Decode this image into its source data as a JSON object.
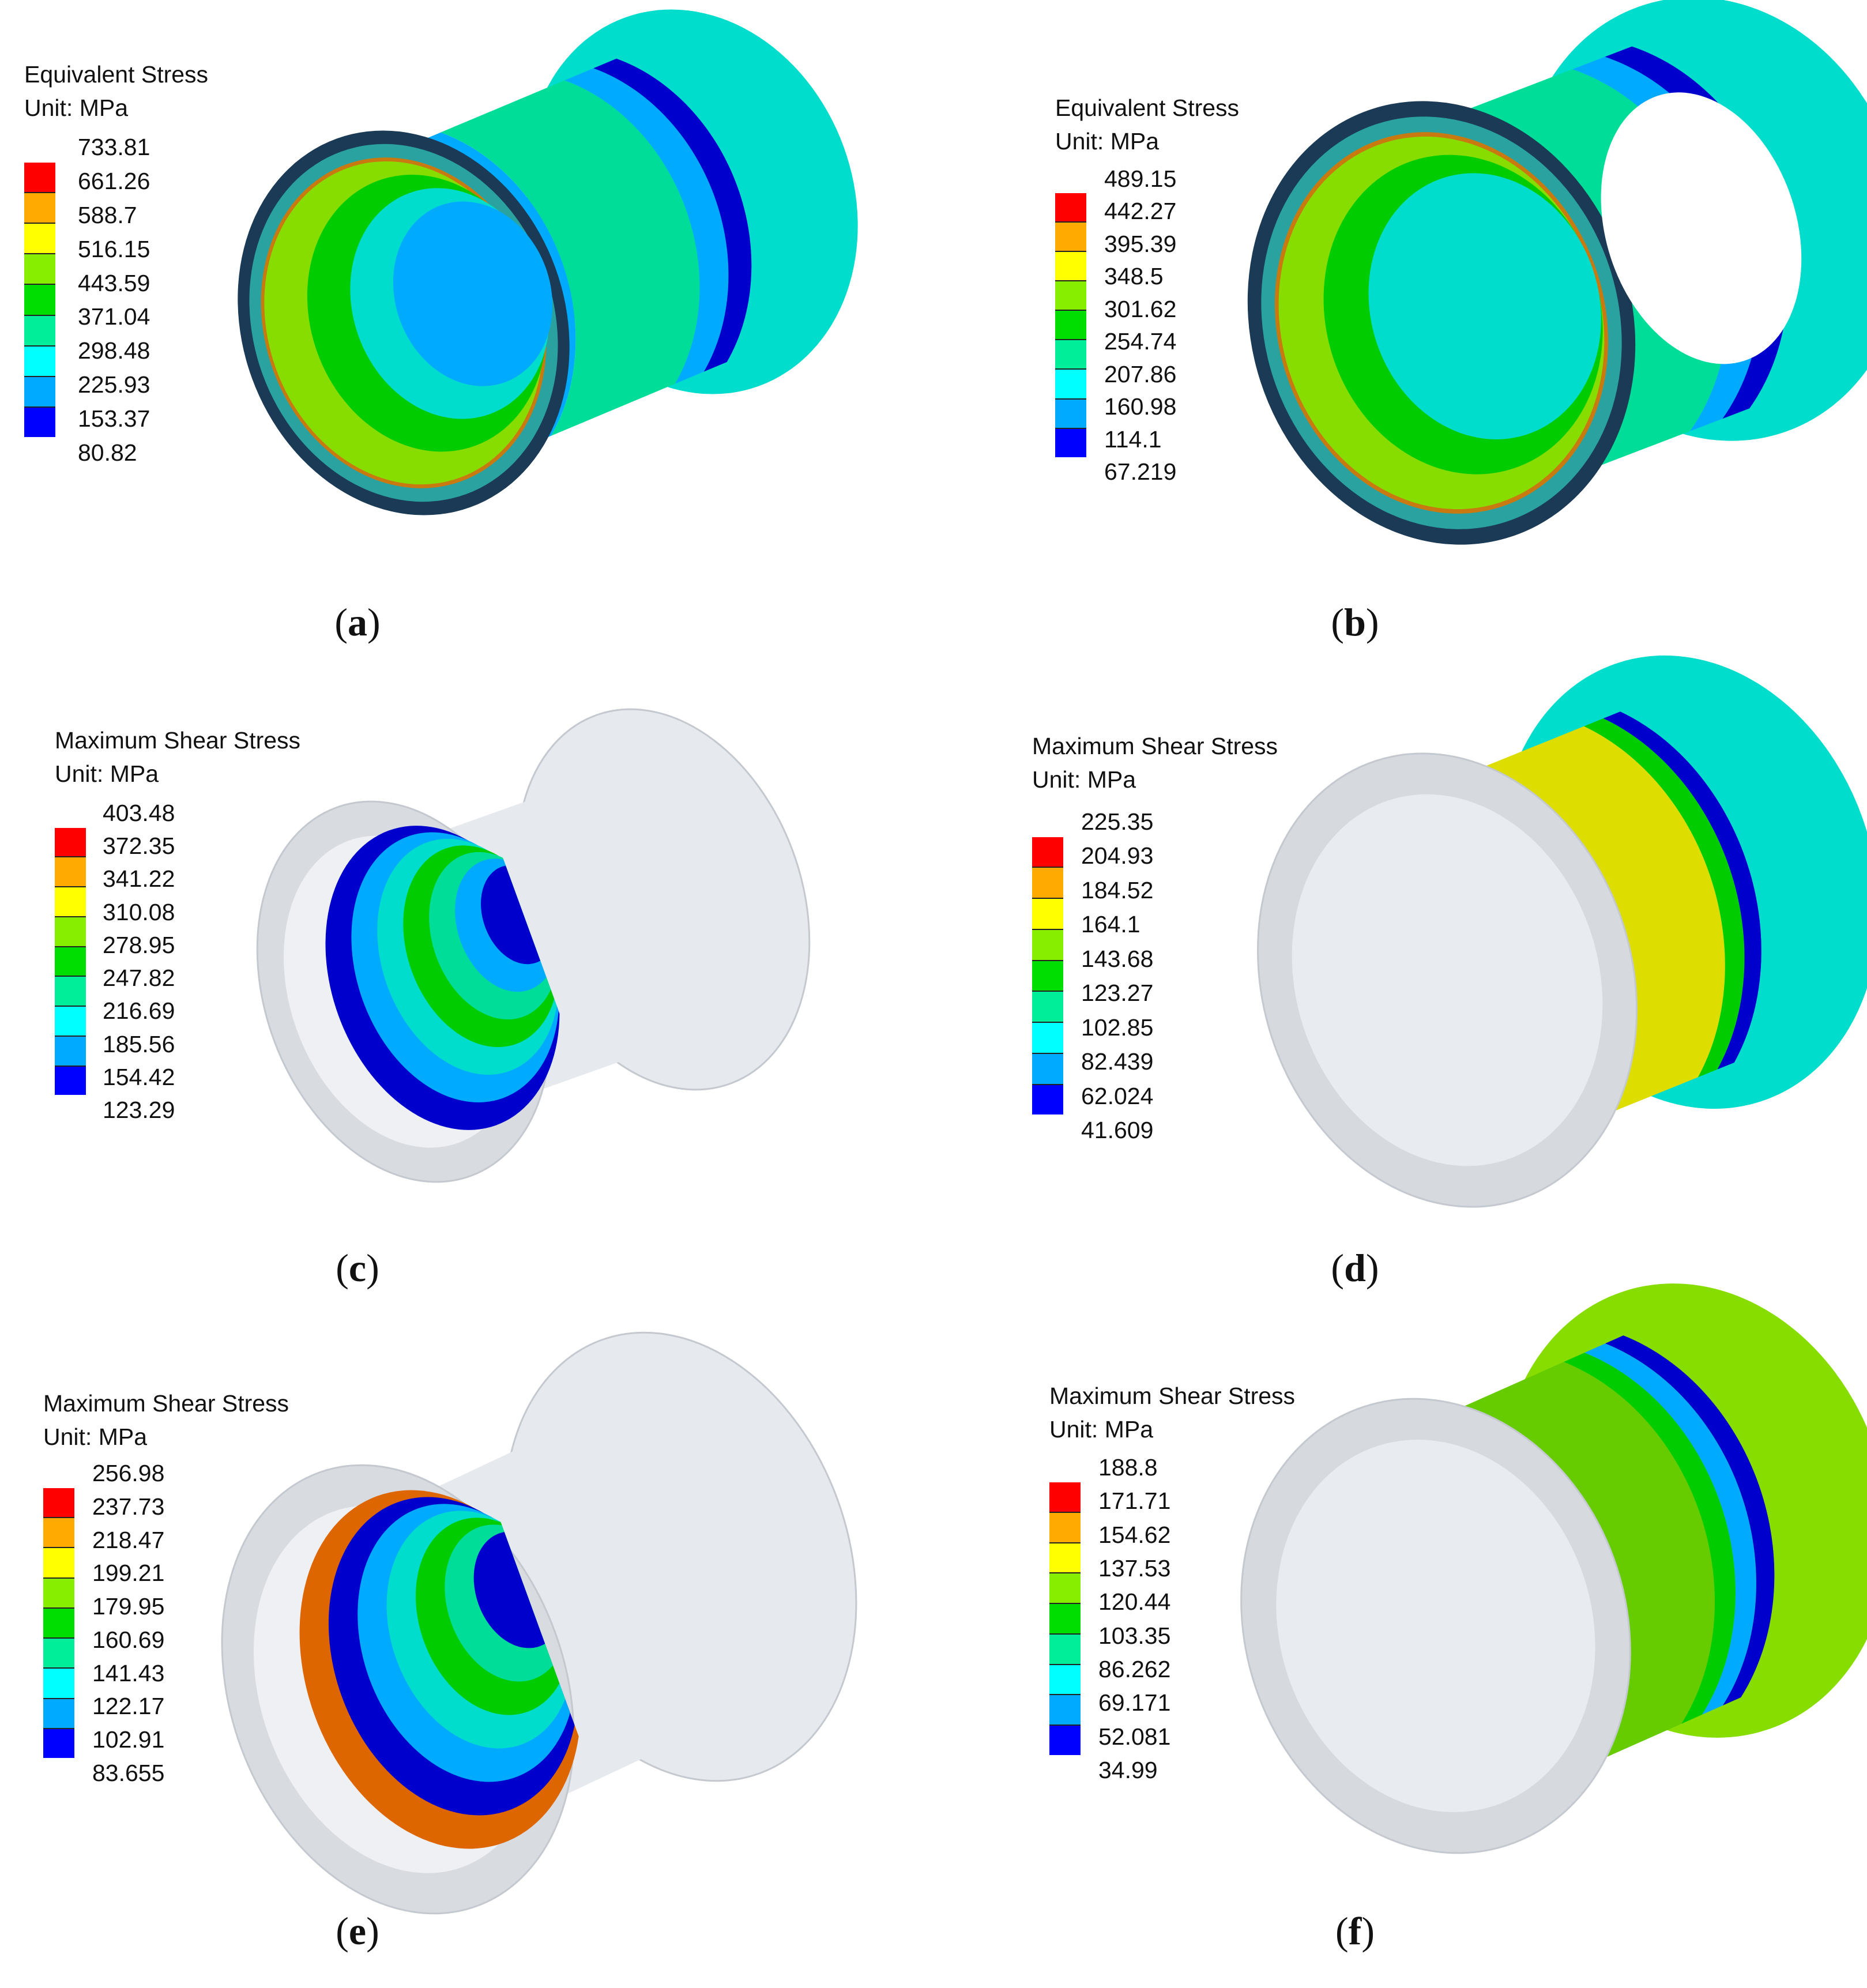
{
  "panels": [
    {
      "id": "a",
      "caption_letter": "a",
      "legend_title": "Equivalent Stress",
      "legend_unit": "Unit: MPa",
      "ticks": [
        "733.81",
        "661.26",
        "588.7",
        "516.15",
        "443.59",
        "371.04",
        "298.48",
        "225.93",
        "153.37",
        "80.82"
      ]
    },
    {
      "id": "b",
      "caption_letter": "b",
      "legend_title": "Equivalent Stress",
      "legend_unit": "Unit: MPa",
      "ticks": [
        "489.15",
        "442.27",
        "395.39",
        "348.5",
        "301.62",
        "254.74",
        "207.86",
        "160.98",
        "114.1",
        "67.219"
      ]
    },
    {
      "id": "c",
      "caption_letter": "c",
      "legend_title": "Maximum Shear Stress",
      "legend_unit": "Unit: MPa",
      "ticks": [
        "403.48",
        "372.35",
        "341.22",
        "310.08",
        "278.95",
        "247.82",
        "216.69",
        "185.56",
        "154.42",
        "123.29"
      ]
    },
    {
      "id": "d",
      "caption_letter": "d",
      "legend_title": "Maximum Shear Stress",
      "legend_unit": "Unit: MPa",
      "ticks": [
        "225.35",
        "204.93",
        "184.52",
        "164.1",
        "143.68",
        "123.27",
        "102.85",
        "82.439",
        "62.024",
        "41.609"
      ]
    },
    {
      "id": "e",
      "caption_letter": "e",
      "legend_title": "Maximum Shear Stress",
      "legend_unit": "Unit: MPa",
      "ticks": [
        "256.98",
        "237.73",
        "218.47",
        "199.21",
        "179.95",
        "160.69",
        "141.43",
        "122.17",
        "102.91",
        "83.655"
      ]
    },
    {
      "id": "f",
      "caption_letter": "f",
      "legend_title": "Maximum Shear Stress",
      "legend_unit": "Unit: MPa",
      "ticks": [
        "188.8",
        "171.71",
        "154.62",
        "137.53",
        "120.44",
        "103.35",
        "86.262",
        "69.171",
        "52.081",
        "34.99"
      ]
    }
  ],
  "colormap": [
    "#ff0000",
    "#ffaa00",
    "#ffff00",
    "#88ee00",
    "#00dd00",
    "#00ee99",
    "#00ffff",
    "#00aaff",
    "#0000ff"
  ],
  "colors": {
    "shell_gray": "#e6e9ee",
    "shell_edge": "#c4c8cf",
    "dark_ring": "#1a3a55"
  }
}
